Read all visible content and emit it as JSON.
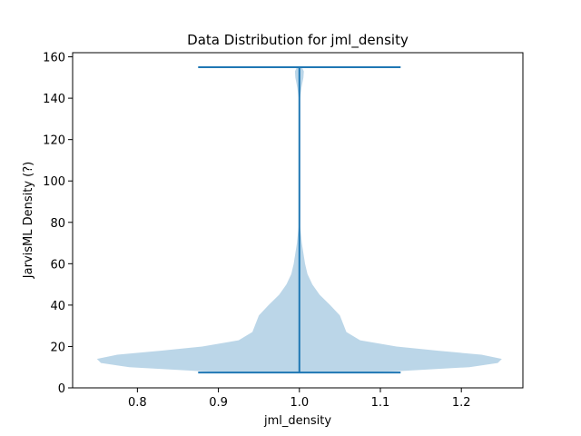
{
  "chart_data": {
    "type": "violin",
    "title": "Data Distribution for jml_density",
    "xlabel": "jml_density",
    "ylabel": "JarvisML Density (?)",
    "xlim": [
      0.72,
      1.276
    ],
    "ylim": [
      0,
      162
    ],
    "xticks": [
      0.8,
      0.9,
      1.0,
      1.1,
      1.2
    ],
    "xtick_labels": [
      "0.8",
      "0.9",
      "1.0",
      "1.1",
      "1.2"
    ],
    "yticks": [
      0,
      20,
      40,
      60,
      80,
      100,
      120,
      140,
      160
    ],
    "ytick_labels": [
      "0",
      "20",
      "40",
      "60",
      "80",
      "100",
      "120",
      "140",
      "160"
    ],
    "grid": false,
    "violin": {
      "position": 1.0,
      "min": 7.4,
      "max": 155,
      "cap_half_width": 0.125,
      "density_profile": [
        {
          "y": 7.4,
          "half_width": 0.06
        },
        {
          "y": 8,
          "half_width": 0.12
        },
        {
          "y": 10,
          "half_width": 0.21
        },
        {
          "y": 12,
          "half_width": 0.245
        },
        {
          "y": 14,
          "half_width": 0.25
        },
        {
          "y": 16,
          "half_width": 0.225
        },
        {
          "y": 18,
          "half_width": 0.17
        },
        {
          "y": 20,
          "half_width": 0.12
        },
        {
          "y": 23,
          "half_width": 0.075
        },
        {
          "y": 27,
          "half_width": 0.058
        },
        {
          "y": 30,
          "half_width": 0.055
        },
        {
          "y": 35,
          "half_width": 0.05
        },
        {
          "y": 40,
          "half_width": 0.038
        },
        {
          "y": 45,
          "half_width": 0.025
        },
        {
          "y": 50,
          "half_width": 0.016
        },
        {
          "y": 55,
          "half_width": 0.01
        },
        {
          "y": 60,
          "half_width": 0.007
        },
        {
          "y": 65,
          "half_width": 0.005
        },
        {
          "y": 70,
          "half_width": 0.003
        },
        {
          "y": 75,
          "half_width": 0.0017
        },
        {
          "y": 78,
          "half_width": 0.0008
        },
        {
          "y": 82,
          "half_width": 0.0002
        },
        {
          "y": 90,
          "half_width": 0.0
        },
        {
          "y": 135,
          "half_width": 0.0
        },
        {
          "y": 140,
          "half_width": 0.0008
        },
        {
          "y": 145,
          "half_width": 0.0025
        },
        {
          "y": 150,
          "half_width": 0.005
        },
        {
          "y": 153,
          "half_width": 0.0055
        },
        {
          "y": 155,
          "half_width": 0.003
        }
      ]
    },
    "colors": {
      "body": "#1f77b4",
      "body_alpha": 0.3,
      "lines": "#1f77b4"
    }
  }
}
